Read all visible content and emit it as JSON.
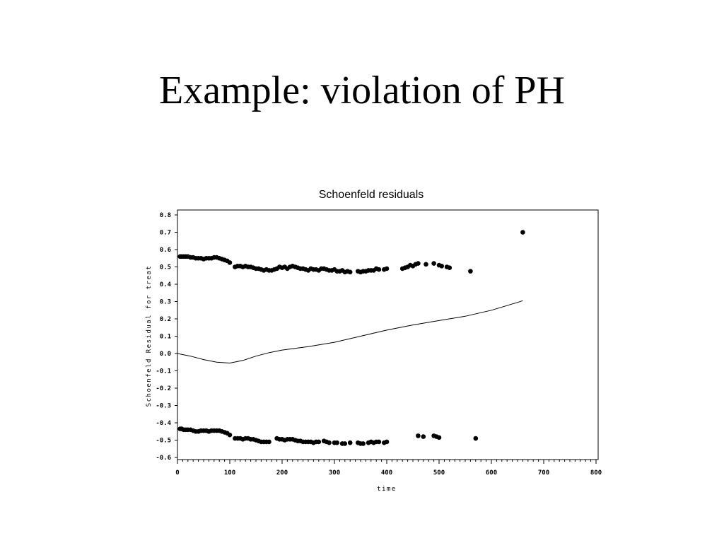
{
  "slide": {
    "title": "Example: violation of PH"
  },
  "chart_data": {
    "type": "scatter",
    "title": "Schoenfeld residuals",
    "xlabel": "time",
    "ylabel": "Schoenfeld Residual for treat",
    "xlim": [
      0,
      800
    ],
    "ylim": [
      -0.6,
      0.8
    ],
    "x_ticks": [
      "0",
      "100",
      "200",
      "300",
      "400",
      "500",
      "600",
      "700",
      "800"
    ],
    "y_ticks": [
      "0.8",
      "0.7",
      "0.6",
      "0.5",
      "0.4",
      "0.3",
      "0.2",
      "0.1",
      "0.0",
      "-0.1",
      "-0.2",
      "-0.3",
      "-0.4",
      "-0.5",
      "-0.6"
    ],
    "grid": false,
    "series": [
      {
        "kind": "points",
        "x": [
          5,
          8,
          12,
          16,
          20,
          25,
          30,
          35,
          40,
          45,
          50,
          55,
          60,
          65,
          70,
          75,
          80,
          85,
          90,
          95,
          100,
          110,
          115,
          120,
          125,
          130,
          135,
          140,
          145,
          150,
          155,
          160,
          165,
          170,
          175,
          180,
          185,
          190,
          195,
          200,
          205,
          210,
          215,
          220,
          225,
          230,
          235,
          240,
          245,
          250,
          255,
          260,
          265,
          270,
          275,
          280,
          285,
          290,
          295,
          300,
          305,
          310,
          315,
          320,
          325,
          330,
          345,
          350,
          355,
          360,
          365,
          370,
          375,
          380,
          385,
          395,
          400,
          430,
          435,
          440,
          445,
          450,
          455,
          460,
          475,
          490,
          500,
          505,
          515,
          520,
          560,
          660
        ],
        "y": [
          0.56,
          0.56,
          0.56,
          0.56,
          0.56,
          0.555,
          0.555,
          0.55,
          0.55,
          0.55,
          0.545,
          0.55,
          0.55,
          0.55,
          0.555,
          0.555,
          0.55,
          0.545,
          0.54,
          0.535,
          0.525,
          0.5,
          0.505,
          0.505,
          0.5,
          0.505,
          0.5,
          0.5,
          0.495,
          0.49,
          0.49,
          0.485,
          0.48,
          0.485,
          0.48,
          0.48,
          0.485,
          0.49,
          0.5,
          0.495,
          0.5,
          0.49,
          0.5,
          0.505,
          0.5,
          0.495,
          0.49,
          0.49,
          0.485,
          0.48,
          0.49,
          0.485,
          0.485,
          0.48,
          0.49,
          0.49,
          0.485,
          0.48,
          0.48,
          0.485,
          0.475,
          0.475,
          0.48,
          0.47,
          0.475,
          0.47,
          0.475,
          0.47,
          0.475,
          0.475,
          0.48,
          0.48,
          0.48,
          0.49,
          0.485,
          0.485,
          0.49,
          0.49,
          0.495,
          0.5,
          0.51,
          0.505,
          0.515,
          0.52,
          0.515,
          0.52,
          0.51,
          0.505,
          0.5,
          0.495,
          0.475,
          0.7
        ]
      },
      {
        "kind": "points",
        "x": [
          5,
          8,
          12,
          16,
          20,
          25,
          30,
          35,
          40,
          45,
          50,
          55,
          60,
          65,
          70,
          75,
          80,
          85,
          90,
          95,
          100,
          110,
          115,
          120,
          125,
          130,
          135,
          140,
          145,
          150,
          155,
          160,
          165,
          170,
          175,
          190,
          195,
          200,
          205,
          210,
          215,
          220,
          225,
          230,
          235,
          240,
          245,
          250,
          255,
          260,
          265,
          270,
          280,
          285,
          290,
          300,
          305,
          315,
          320,
          330,
          345,
          350,
          355,
          365,
          370,
          375,
          380,
          385,
          395,
          400,
          460,
          470,
          490,
          495,
          500,
          570
        ],
        "y": [
          -0.435,
          -0.435,
          -0.44,
          -0.44,
          -0.44,
          -0.44,
          -0.445,
          -0.45,
          -0.45,
          -0.445,
          -0.445,
          -0.445,
          -0.45,
          -0.445,
          -0.445,
          -0.445,
          -0.445,
          -0.45,
          -0.455,
          -0.46,
          -0.47,
          -0.49,
          -0.49,
          -0.49,
          -0.495,
          -0.49,
          -0.49,
          -0.495,
          -0.495,
          -0.5,
          -0.505,
          -0.51,
          -0.51,
          -0.51,
          -0.51,
          -0.49,
          -0.495,
          -0.495,
          -0.5,
          -0.495,
          -0.495,
          -0.495,
          -0.5,
          -0.505,
          -0.505,
          -0.51,
          -0.51,
          -0.51,
          -0.51,
          -0.515,
          -0.51,
          -0.51,
          -0.505,
          -0.51,
          -0.515,
          -0.515,
          -0.515,
          -0.52,
          -0.52,
          -0.515,
          -0.515,
          -0.52,
          -0.52,
          -0.515,
          -0.51,
          -0.515,
          -0.51,
          -0.51,
          -0.515,
          -0.51,
          -0.475,
          -0.48,
          -0.475,
          -0.48,
          -0.485,
          -0.49
        ]
      },
      {
        "kind": "line",
        "x": [
          0,
          25,
          50,
          75,
          100,
          125,
          150,
          175,
          200,
          250,
          300,
          350,
          400,
          450,
          500,
          550,
          600,
          650,
          660
        ],
        "y": [
          0.0,
          -0.015,
          -0.035,
          -0.05,
          -0.055,
          -0.04,
          -0.015,
          0.005,
          0.02,
          0.04,
          0.065,
          0.1,
          0.135,
          0.165,
          0.19,
          0.215,
          0.25,
          0.295,
          0.305
        ]
      }
    ]
  }
}
